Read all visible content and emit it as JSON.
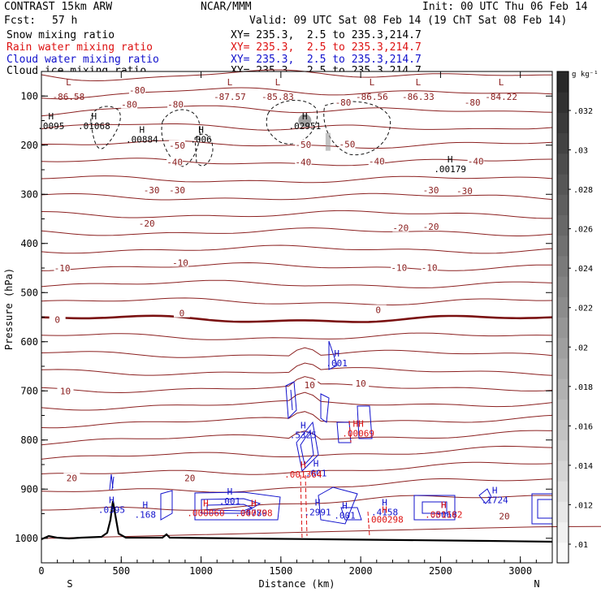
{
  "header": {
    "model": "CONTRAST 15km ARW",
    "center": "NCAR/MMM",
    "init": "Init: 00 UTC Thu 06 Feb 14",
    "fcst_label": "Fcst:",
    "fcst_value": "57 h",
    "valid": "Valid: 09 UTC Sat 08 Feb 14 (19 ChT Sat 08 Feb 14)",
    "fields": [
      {
        "name": "Snow mixing ratio",
        "xy": "XY= 235.3,  2.5 to 235.3,214.7",
        "color": "#000000"
      },
      {
        "name": "Rain water mixing ratio",
        "xy": "XY= 235.3,  2.5 to 235.3,214.7",
        "color": "#dd1111"
      },
      {
        "name": "Cloud water mixing ratio",
        "xy": "XY= 235.3,  2.5 to 235.3,214.7",
        "color": "#1111cc"
      },
      {
        "name": "Cloud ice mixing ratio",
        "xy": "XY= 235.3,  2.5 to 235.3,214.7",
        "color": "#000000"
      }
    ]
  },
  "chart_data": {
    "type": "vertical cross-section contour",
    "xlabel": "Distance (km)",
    "ylabel": "Pressure (hPa)",
    "xlim": [
      0,
      3200
    ],
    "ylim": [
      1050,
      50
    ],
    "x_ticks": [
      0,
      500,
      1000,
      1500,
      2000,
      2500,
      3000
    ],
    "y_ticks": [
      100,
      200,
      300,
      400,
      500,
      600,
      700,
      800,
      900,
      1000
    ],
    "endpoint_labels": {
      "left": "S",
      "right": "N"
    },
    "colorbar": {
      "unit": "g kg⁻¹",
      "ticks": [
        ".01",
        ".012",
        ".014",
        ".016",
        ".018",
        ".02",
        ".022",
        ".024",
        ".026",
        ".028",
        ".03",
        ".032"
      ]
    },
    "temperature_contour_labels": [
      {
        "v": "-80",
        "x": 600,
        "p": 88
      },
      {
        "v": "-80",
        "x": 550,
        "p": 117
      },
      {
        "v": "-80",
        "x": 840,
        "p": 117
      },
      {
        "v": "-80",
        "x": 1890,
        "p": 113
      },
      {
        "v": "-80",
        "x": 2700,
        "p": 113
      },
      {
        "v": "-50",
        "x": 850,
        "p": 200
      },
      {
        "v": "-50",
        "x": 1640,
        "p": 199
      },
      {
        "v": "-50",
        "x": 1915,
        "p": 198
      },
      {
        "v": "-40",
        "x": 835,
        "p": 234
      },
      {
        "v": "-40",
        "x": 1640,
        "p": 234
      },
      {
        "v": "-40",
        "x": 2100,
        "p": 233
      },
      {
        "v": "-40",
        "x": 2720,
        "p": 233
      },
      {
        "v": "-30",
        "x": 690,
        "p": 291
      },
      {
        "v": "-30",
        "x": 850,
        "p": 291
      },
      {
        "v": "-30",
        "x": 2440,
        "p": 291
      },
      {
        "v": "-30",
        "x": 2650,
        "p": 293
      },
      {
        "v": "-20",
        "x": 660,
        "p": 359
      },
      {
        "v": "-20",
        "x": 2250,
        "p": 368
      },
      {
        "v": "-20",
        "x": 2440,
        "p": 366
      },
      {
        "v": "-10",
        "x": 130,
        "p": 450
      },
      {
        "v": "-10",
        "x": 870,
        "p": 439
      },
      {
        "v": "-10",
        "x": 2240,
        "p": 449
      },
      {
        "v": "-10",
        "x": 2430,
        "p": 449
      },
      {
        "v": "0",
        "x": 100,
        "p": 555
      },
      {
        "v": "0",
        "x": 880,
        "p": 542
      },
      {
        "v": "0",
        "x": 2110,
        "p": 535
      },
      {
        "v": "10",
        "x": 150,
        "p": 700
      },
      {
        "v": "10",
        "x": 1680,
        "p": 688
      },
      {
        "v": "10",
        "x": 2000,
        "p": 685
      },
      {
        "v": "20",
        "x": 190,
        "p": 877
      },
      {
        "v": "20",
        "x": 930,
        "p": 877
      },
      {
        "v": "20",
        "x": 2900,
        "p": 955
      }
    ],
    "low_centers": [
      {
        "label": "L",
        "value": "-86.58",
        "x": 170
      },
      {
        "label": "L",
        "value": "-87.57",
        "x": 1180
      },
      {
        "label": "L",
        "value": "-85.83",
        "x": 1480
      },
      {
        "label": "L",
        "value": "-86.56",
        "x": 2070
      },
      {
        "label": "L",
        "value": "-86.33",
        "x": 2360
      },
      {
        "label": "L",
        "value": "-84.22",
        "x": 2880
      }
    ],
    "snow_maxima": [
      {
        "label": "H",
        "value": ".0095",
        "x": 60,
        "p": 164
      },
      {
        "label": "H",
        "value": ".01068",
        "x": 330,
        "p": 164
      },
      {
        "label": "H",
        "value": ".00884",
        "x": 630,
        "p": 191
      },
      {
        "label": "H",
        "value": ".006",
        "x": 1000,
        "p": 191
      },
      {
        "label": "H",
        "value": ".02951",
        "x": 1650,
        "p": 164
      },
      {
        "label": "H",
        "value": ".00179",
        "x": 2560,
        "p": 252
      }
    ],
    "cloud_water_maxima": [
      {
        "label": "H",
        "value": ".0395",
        "x": 440,
        "p": 945
      },
      {
        "label": "H",
        "value": ".168",
        "x": 650,
        "p": 955
      },
      {
        "label": "H",
        "value": ".001",
        "x": 1180,
        "p": 928
      },
      {
        "label": "H",
        "value": ".4789",
        "x": 1330,
        "p": 952
      },
      {
        "label": "H",
        "value": ".5325",
        "x": 1640,
        "p": 793
      },
      {
        "label": "H",
        "value": ".001",
        "x": 1850,
        "p": 647
      },
      {
        "label": "H",
        "value": ".001",
        "x": 1720,
        "p": 871
      },
      {
        "label": "H",
        "value": ".2991",
        "x": 1730,
        "p": 950
      },
      {
        "label": "H",
        "value": ".001",
        "x": 1900,
        "p": 957
      },
      {
        "label": "H",
        "value": ".4158",
        "x": 2150,
        "p": 950
      },
      {
        "label": "H",
        "value": ".5068",
        "x": 2520,
        "p": 955
      },
      {
        "label": "H",
        "value": ".1724",
        "x": 2840,
        "p": 925
      }
    ],
    "rain_maxima": [
      {
        "label": "H",
        "value": ".000060",
        "x": 1030,
        "p": 952
      },
      {
        "label": "H",
        "value": ".000708",
        "x": 1330,
        "p": 952
      },
      {
        "label": "H",
        "value": ".001364",
        "x": 1640,
        "p": 873
      },
      {
        "label": "HH",
        "value": ".00069",
        "x": 1985,
        "p": 790
      },
      {
        "label": "H",
        "value": ".000298",
        "x": 2150,
        "p": 965
      },
      {
        "label": "H",
        "value": ".001162",
        "x": 2520,
        "p": 955
      }
    ],
    "cloud_ice_contour_labels": [
      {
        "v": "-50",
        "x": 840,
        "p": 200
      },
      {
        "v": "-80",
        "x": 1890,
        "p": 113
      }
    ]
  }
}
